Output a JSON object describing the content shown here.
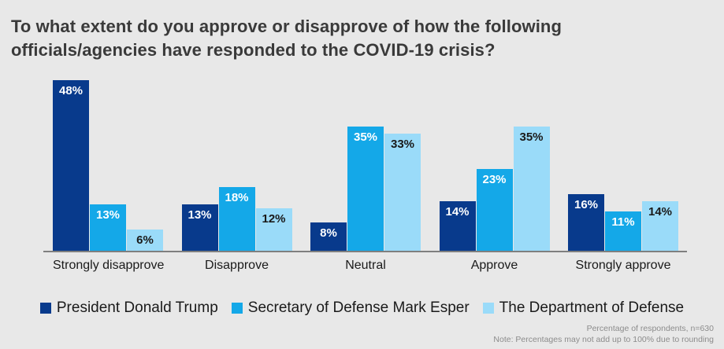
{
  "title": "To what extent do you approve or disapprove of how the following officials/agencies have responded to the COVID-19 crisis?",
  "chart_data": {
    "type": "bar",
    "title": "To what extent do you approve or disapprove of how the following officials/agencies have responded to the COVID-19 crisis?",
    "categories": [
      "Strongly disapprove",
      "Disapprove",
      "Neutral",
      "Approve",
      "Strongly approve"
    ],
    "series": [
      {
        "name": "President Donald Trump",
        "values": [
          48,
          13,
          8,
          14,
          16
        ],
        "color": "#083a8c",
        "label_color": "#ffffff"
      },
      {
        "name": "Secretary of Defense Mark Esper",
        "values": [
          13,
          18,
          35,
          23,
          11
        ],
        "color": "#14a8e8",
        "label_color": "#ffffff"
      },
      {
        "name": "The Department of Defense",
        "values": [
          6,
          12,
          33,
          35,
          14
        ],
        "color": "#9adbf9",
        "label_color": "#1a1a1a"
      }
    ],
    "value_suffix": "%",
    "xlabel": "",
    "ylabel": "",
    "ylim": [
      0,
      50
    ],
    "grid": false,
    "legend_position": "bottom",
    "background_color": "#e8e8e8",
    "axis_line_color": "#7f7f7f"
  },
  "notes": {
    "line1": "Percentage of respondents, n=630",
    "line2": "Note: Percentages may not add up to 100% due to rounding"
  }
}
